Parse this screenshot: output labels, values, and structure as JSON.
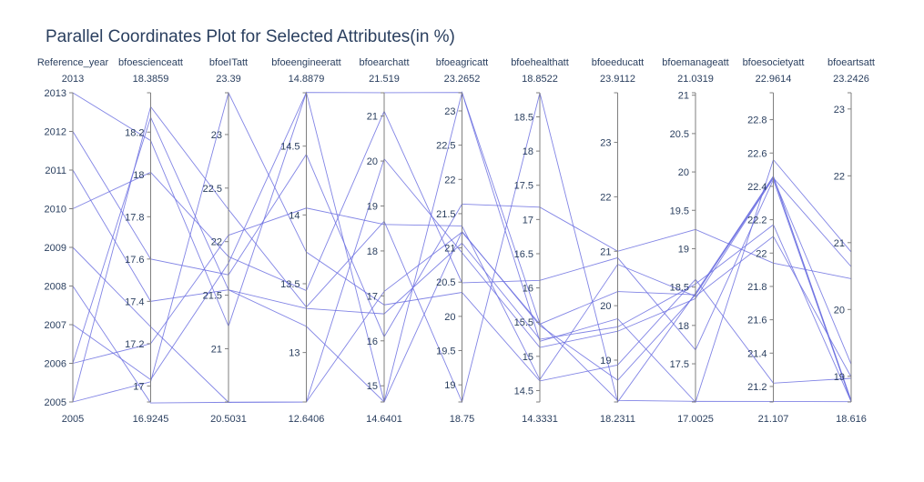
{
  "chart_data": {
    "type": "parallel_coordinates",
    "title": "Parallel Coordinates Plot for Selected Attributes(in %)",
    "line_color": "#6b6ee0",
    "axis_color": "#7f7f7f",
    "text_color": "#2a3f5f",
    "dimensions": [
      {
        "label": "Reference_year",
        "range": [
          2005,
          2013
        ],
        "range_min_label": "2005",
        "range_max_label": "2013",
        "ticks": [
          2005,
          2006,
          2007,
          2008,
          2009,
          2010,
          2011,
          2012,
          2013
        ],
        "tick_side": "left"
      },
      {
        "label": "bfoescienceatt",
        "range": [
          16.9245,
          18.3859
        ],
        "range_min_label": "16.9245",
        "range_max_label": "18.3859",
        "ticks": [
          17,
          17.2,
          17.4,
          17.6,
          17.8,
          18,
          18.2
        ],
        "tick_side": "left"
      },
      {
        "label": "bfoeITatt",
        "range": [
          20.5031,
          23.39
        ],
        "range_min_label": "20.5031",
        "range_max_label": "23.39",
        "ticks": [
          21,
          21.5,
          22,
          22.5,
          23
        ],
        "tick_side": "left"
      },
      {
        "label": "bfoeengineeratt",
        "range": [
          12.6406,
          14.8879
        ],
        "range_min_label": "12.6406",
        "range_max_label": "14.8879",
        "ticks": [
          13,
          13.5,
          14,
          14.5
        ],
        "tick_side": "left"
      },
      {
        "label": "bfoearchatt",
        "range": [
          14.6401,
          21.519
        ],
        "range_min_label": "14.6401",
        "range_max_label": "21.519",
        "ticks": [
          15,
          16,
          17,
          18,
          19,
          20,
          21
        ],
        "tick_side": "left"
      },
      {
        "label": "bfoeagricatt",
        "range": [
          18.75,
          23.2652
        ],
        "range_min_label": "18.75",
        "range_max_label": "23.2652",
        "ticks": [
          19,
          19.5,
          20,
          20.5,
          21,
          21.5,
          22,
          22.5,
          23
        ],
        "tick_side": "left"
      },
      {
        "label": "bfoehealthatt",
        "range": [
          14.3331,
          18.8522
        ],
        "range_min_label": "14.3331",
        "range_max_label": "18.8522",
        "ticks": [
          14.5,
          15,
          15.5,
          16,
          16.5,
          17,
          17.5,
          18,
          18.5
        ],
        "tick_side": "left"
      },
      {
        "label": "bfoeeducatt",
        "range": [
          18.2311,
          23.9112
        ],
        "range_min_label": "18.2311",
        "range_max_label": "23.9112",
        "ticks": [
          19,
          20,
          21,
          22,
          23
        ],
        "tick_side": "left"
      },
      {
        "label": "bfoemanageatt",
        "range": [
          17.0025,
          21.0319
        ],
        "range_min_label": "17.0025",
        "range_max_label": "21.0319",
        "ticks": [
          17.5,
          18,
          18.5,
          19,
          19.5,
          20,
          20.5,
          21
        ],
        "tick_side": "left"
      },
      {
        "label": "bfoesocietyatt",
        "range": [
          21.107,
          22.9614
        ],
        "range_min_label": "21.107",
        "range_max_label": "22.9614",
        "ticks": [
          21.2,
          21.4,
          21.6,
          21.8,
          22,
          22.2,
          22.4,
          22.6,
          22.8
        ],
        "tick_side": "left"
      },
      {
        "label": "bfoeartsatt",
        "range": [
          18.616,
          23.2426
        ],
        "range_min_label": "18.616",
        "range_max_label": "23.2426",
        "ticks": [
          19,
          20,
          21,
          22,
          23
        ],
        "tick_side": "left"
      }
    ],
    "lines": [
      [
        2013,
        18.16,
        21.21,
        14.89,
        21.52,
        23.27,
        15.48,
        18.26,
        17.01,
        21.11,
        18.62
      ],
      [
        2012,
        17.6,
        21.69,
        14.44,
        16.09,
        21.64,
        17.18,
        21.0,
        19.25,
        21.94,
        20.46
      ],
      [
        2011,
        17.4,
        21.55,
        13.32,
        16.6,
        21.07,
        15.25,
        19.61,
        18.54,
        22.17,
        18.62
      ],
      [
        2010,
        18.01,
        21.86,
        13.45,
        21.11,
        20.49,
        16.11,
        20.88,
        17.68,
        22.44,
        18.62
      ],
      [
        2009,
        17.28,
        20.5,
        12.64,
        17.1,
        21.23,
        15.47,
        20.26,
        18.4,
        22.45,
        20.64
      ],
      [
        2008,
        16.92,
        20.5,
        12.64,
        20.05,
        20.93,
        15.13,
        19.53,
        18.35,
        22.45,
        19.18
      ],
      [
        2007,
        17.03,
        21.8,
        14.89,
        14.64,
        23.27,
        15.22,
        19.76,
        17.0,
        22.56,
        20.86
      ],
      [
        2006,
        17.2,
        22.06,
        14.05,
        18.59,
        21.32,
        14.66,
        20.76,
        18.38,
        22.1,
        18.99
      ],
      [
        2005,
        17.02,
        23.39,
        13.73,
        16.8,
        20.35,
        14.64,
        18.91,
        18.6,
        21.22,
        18.97
      ],
      [
        2006,
        18.27,
        21.55,
        13.19,
        14.64,
        21.24,
        15.45,
        18.63,
        18.4,
        22.46,
        18.64
      ],
      [
        2005,
        18.32,
        22.3,
        13.33,
        18.66,
        18.75,
        18.85,
        18.23,
        18.42,
        22.46,
        18.62
      ]
    ]
  }
}
